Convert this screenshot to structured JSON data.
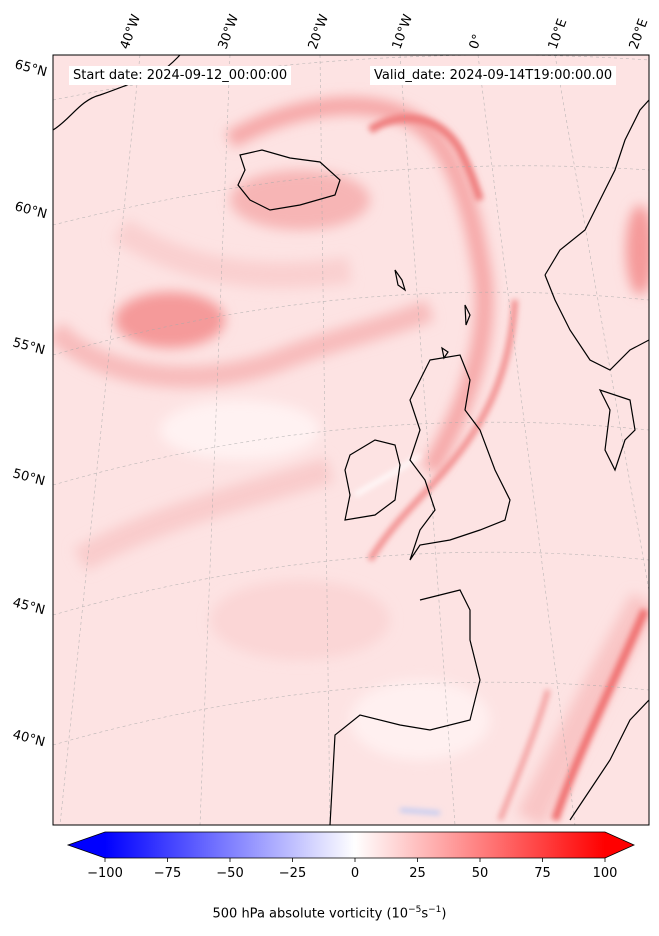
{
  "annotations": {
    "start_date": "Start date: 2024-09-12_00:00:00",
    "valid_date": "Valid_date: 2024-09-14T19:00:00.00"
  },
  "longitude_labels": [
    "40°W",
    "30°W",
    "20°W",
    "10°W",
    "0°",
    "10°E",
    "20°E"
  ],
  "latitude_labels": [
    "65°N",
    "60°N",
    "55°N",
    "50°N",
    "45°N",
    "40°N"
  ],
  "colorbar": {
    "title_prefix": "500 hPa absolute vorticity (10",
    "title_exp1": "−5",
    "title_mid": "s",
    "title_exp2": "−1",
    "title_suffix": ")",
    "tick_labels": [
      "−100",
      "−75",
      "−50",
      "−25",
      "0",
      "25",
      "50",
      "75",
      "100"
    ],
    "vmin": -100,
    "vmax": 100,
    "colormap": "bwr",
    "extend": "both"
  },
  "chart_data": {
    "type": "map",
    "projection": "conic",
    "field": "500 hPa absolute vorticity",
    "units": "1e-5 s^-1",
    "lon_ticks": [
      -40,
      -30,
      -20,
      -10,
      0,
      10,
      20
    ],
    "lat_ticks": [
      65,
      60,
      55,
      50,
      45,
      40
    ]
  },
  "colors": {
    "field_background": "#fde4e4",
    "positive_max": "#ff0000",
    "negative_max": "#0000ff",
    "coastline": "#000000"
  }
}
